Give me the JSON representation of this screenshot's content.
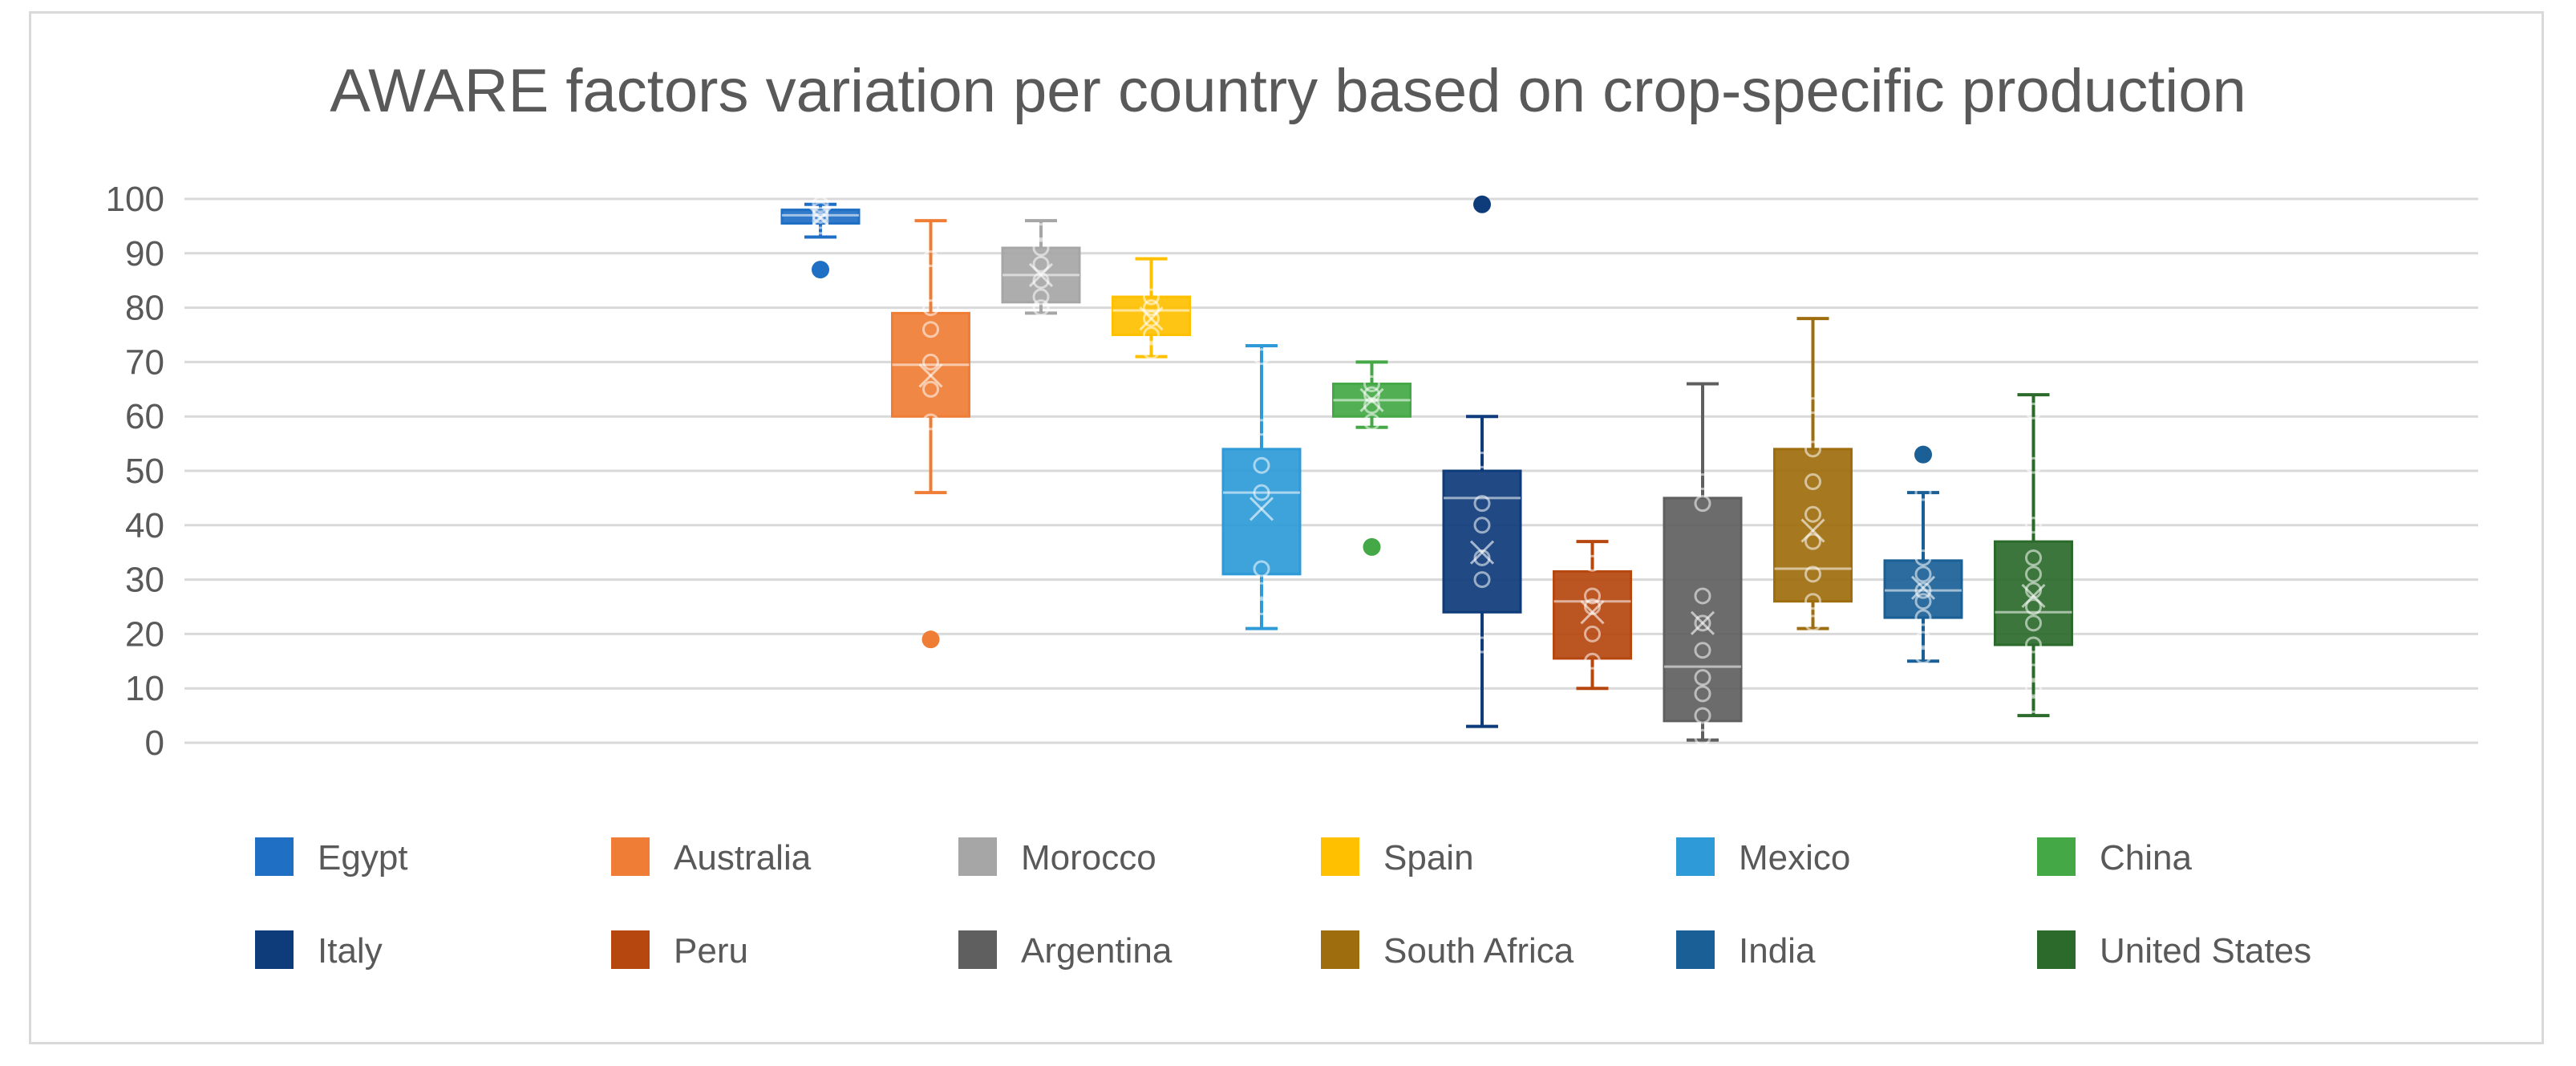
{
  "chart_data": {
    "type": "boxplot",
    "title": "AWARE factors variation per country based on crop-specific production",
    "xlabel": "",
    "ylabel": "",
    "ylim": [
      0,
      100
    ],
    "yticks": [
      0,
      10,
      20,
      30,
      40,
      50,
      60,
      70,
      80,
      90,
      100
    ],
    "grid": true,
    "legend_position": "bottom",
    "series": [
      {
        "name": "Egypt",
        "color": "#1f6fc5",
        "min": 93,
        "q1": 95.5,
        "median": 97,
        "q3": 98,
        "max": 99,
        "mean": 96.5,
        "points": [
          95,
          96,
          97,
          98,
          99
        ],
        "outliers": [
          87
        ]
      },
      {
        "name": "Australia",
        "color": "#f07d35",
        "min": 46,
        "q1": 60,
        "median": 69.5,
        "q3": 79,
        "max": 96,
        "mean": 67.5,
        "points": [
          59,
          65,
          70,
          76,
          80,
          89
        ],
        "outliers": [
          19
        ]
      },
      {
        "name": "Morocco",
        "color": "#a6a6a6",
        "min": 79,
        "q1": 81,
        "median": 86,
        "q3": 91,
        "max": 96,
        "mean": 86,
        "points": [
          80,
          82,
          85,
          88,
          91,
          94
        ],
        "outliers": []
      },
      {
        "name": "Spain",
        "color": "#ffc000",
        "min": 71,
        "q1": 75,
        "median": 79.5,
        "q3": 82,
        "max": 89,
        "mean": 78,
        "points": [
          72,
          75,
          78,
          80,
          82
        ],
        "outliers": []
      },
      {
        "name": "Mexico",
        "color": "#2e9ad8",
        "min": 21,
        "q1": 31,
        "median": 46,
        "q3": 54,
        "max": 73,
        "mean": 43,
        "points": [
          25,
          28,
          32,
          46,
          51,
          58,
          71
        ],
        "outliers": []
      },
      {
        "name": "China",
        "color": "#43a845",
        "min": 58,
        "q1": 60,
        "median": 63,
        "q3": 66,
        "max": 70,
        "mean": 63,
        "points": [
          59,
          62,
          64,
          66
        ],
        "outliers": [
          36
        ]
      },
      {
        "name": "Italy",
        "color": "#0e3b7a",
        "min": 3,
        "q1": 24,
        "median": 45,
        "q3": 50,
        "max": 60,
        "mean": 35,
        "points": [
          18,
          30,
          34,
          40,
          44,
          52
        ],
        "outliers": [
          99
        ]
      },
      {
        "name": "Peru",
        "color": "#b5470f",
        "min": 10,
        "q1": 15.5,
        "median": 26,
        "q3": 31.5,
        "max": 37,
        "mean": 24,
        "points": [
          15,
          20,
          25,
          27,
          33
        ],
        "outliers": []
      },
      {
        "name": "Argentina",
        "color": "#5f5f5f",
        "min": 0.5,
        "q1": 4,
        "median": 14,
        "q3": 45,
        "max": 66,
        "mean": 22,
        "points": [
          1,
          5,
          9,
          12,
          17,
          22,
          27,
          44,
          48
        ],
        "outliers": []
      },
      {
        "name": "South Africa",
        "color": "#9e6d0d",
        "min": 21,
        "q1": 26,
        "median": 32,
        "q3": 54,
        "max": 78,
        "mean": 39,
        "points": [
          22,
          26,
          31,
          37,
          42,
          48,
          54,
          62
        ],
        "outliers": []
      },
      {
        "name": "India",
        "color": "#1a5f96",
        "min": 15,
        "q1": 23,
        "median": 28,
        "q3": 33.5,
        "max": 46,
        "mean": 28.5,
        "points": [
          16,
          19,
          23,
          26,
          28,
          31,
          34,
          46
        ],
        "outliers": [
          53
        ]
      },
      {
        "name": "United States",
        "color": "#2b6a2b",
        "min": 5,
        "q1": 18,
        "median": 24,
        "q3": 37,
        "max": 64,
        "mean": 27,
        "points": [
          7,
          10,
          13,
          18,
          22,
          25,
          28,
          31,
          34,
          40,
          51,
          61
        ],
        "outliers": []
      }
    ]
  }
}
